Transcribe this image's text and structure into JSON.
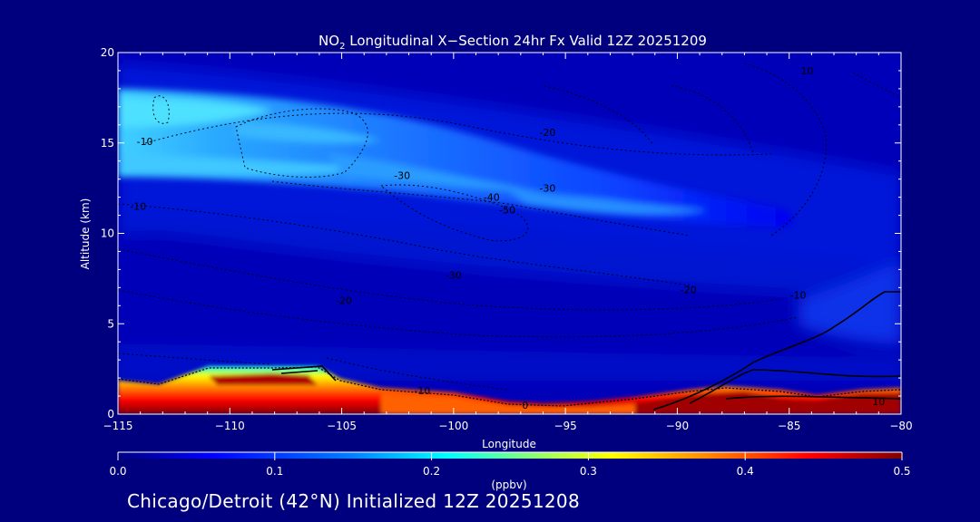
{
  "chart_data": {
    "type": "heatmap",
    "title_prefix": "NO",
    "title_sub": "2",
    "title_rest": " Longitudinal X−Section 24hr  Fx Valid 12Z 20251209",
    "xlabel": "Longitude",
    "ylabel": "Altitude (km)",
    "xlim": [
      -115,
      -80
    ],
    "ylim": [
      0,
      20
    ],
    "x_ticks": [
      -115,
      -110,
      -105,
      -100,
      -95,
      -90,
      -85,
      -80
    ],
    "x_tick_labels": [
      "−115",
      "−110",
      "−105",
      "−100",
      "−95",
      "−90",
      "−85",
      "−80"
    ],
    "y_ticks": [
      0,
      5,
      10,
      15,
      20
    ],
    "y_tick_labels": [
      "0",
      "5",
      "10",
      "15",
      "20"
    ],
    "colorbar": {
      "label": "(ppbv)",
      "range": [
        0,
        0.5
      ],
      "ticks": [
        0.0,
        0.1,
        0.2,
        0.3,
        0.4,
        0.5
      ],
      "tick_labels": [
        "0.0",
        "0.1",
        "0.2",
        "0.3",
        "0.4",
        "0.5"
      ],
      "colors": [
        "#00007f",
        "#0000ff",
        "#0080ff",
        "#00ffff",
        "#80ff80",
        "#ffff00",
        "#ff8000",
        "#ff0000",
        "#7f0000"
      ]
    },
    "no2_band_upper": {
      "longitude": [
        -115,
        -110,
        -105,
        -100,
        -95,
        -90,
        -85,
        -80
      ],
      "center_altitude_km": [
        16.5,
        16.0,
        14.8,
        13.8,
        13.0,
        12.0,
        11.6,
        11.4
      ],
      "peak_ppbv": [
        0.18,
        0.14,
        0.1,
        0.09,
        0.08,
        0.07,
        0.05,
        0.04
      ]
    },
    "surface_terrain": {
      "longitude": [
        -115,
        -113,
        -111,
        -109,
        -107,
        -105,
        -103,
        -100,
        -97,
        -95,
        -92,
        -90,
        -88,
        -86,
        -84,
        -82,
        -80
      ],
      "top_km": [
        1.7,
        1.4,
        2.3,
        2.3,
        2.3,
        2.2,
        1.3,
        1.0,
        0.5,
        0.5,
        0.7,
        0.9,
        1.0,
        1.1,
        0.9,
        1.0,
        1.0
      ]
    },
    "temperature_contours": [
      {
        "label": "-10",
        "lon": -113.8,
        "alt": 15.1
      },
      {
        "label": "-10",
        "lon": -114.1,
        "alt": 11.5
      },
      {
        "label": "-20",
        "lon": -104.9,
        "alt": 6.3
      },
      {
        "label": "-30",
        "lon": -102.3,
        "alt": 13.2
      },
      {
        "label": "-30",
        "lon": -100.0,
        "alt": 7.7
      },
      {
        "label": "-40",
        "lon": -98.3,
        "alt": 12.0
      },
      {
        "label": "-50",
        "lon": -97.6,
        "alt": 11.3
      },
      {
        "label": "-20",
        "lon": -95.8,
        "alt": 15.6
      },
      {
        "label": "-30",
        "lon": -95.8,
        "alt": 12.5
      },
      {
        "label": "-20",
        "lon": -89.5,
        "alt": 6.9
      },
      {
        "label": "-10",
        "lon": -84.6,
        "alt": 6.6
      },
      {
        "label": "10",
        "lon": -84.2,
        "alt": 19.0
      },
      {
        "label": "0",
        "lon": -79.9,
        "alt": 6.6
      },
      {
        "label": "-10",
        "lon": -101.4,
        "alt": 1.3
      },
      {
        "label": "0",
        "lon": -96.8,
        "alt": 0.5
      },
      {
        "label": "10",
        "lon": -81.0,
        "alt": 0.7
      }
    ]
  },
  "footer": {
    "text": "Chicago/Detroit (42°N) Initialized 12Z 20251208"
  }
}
